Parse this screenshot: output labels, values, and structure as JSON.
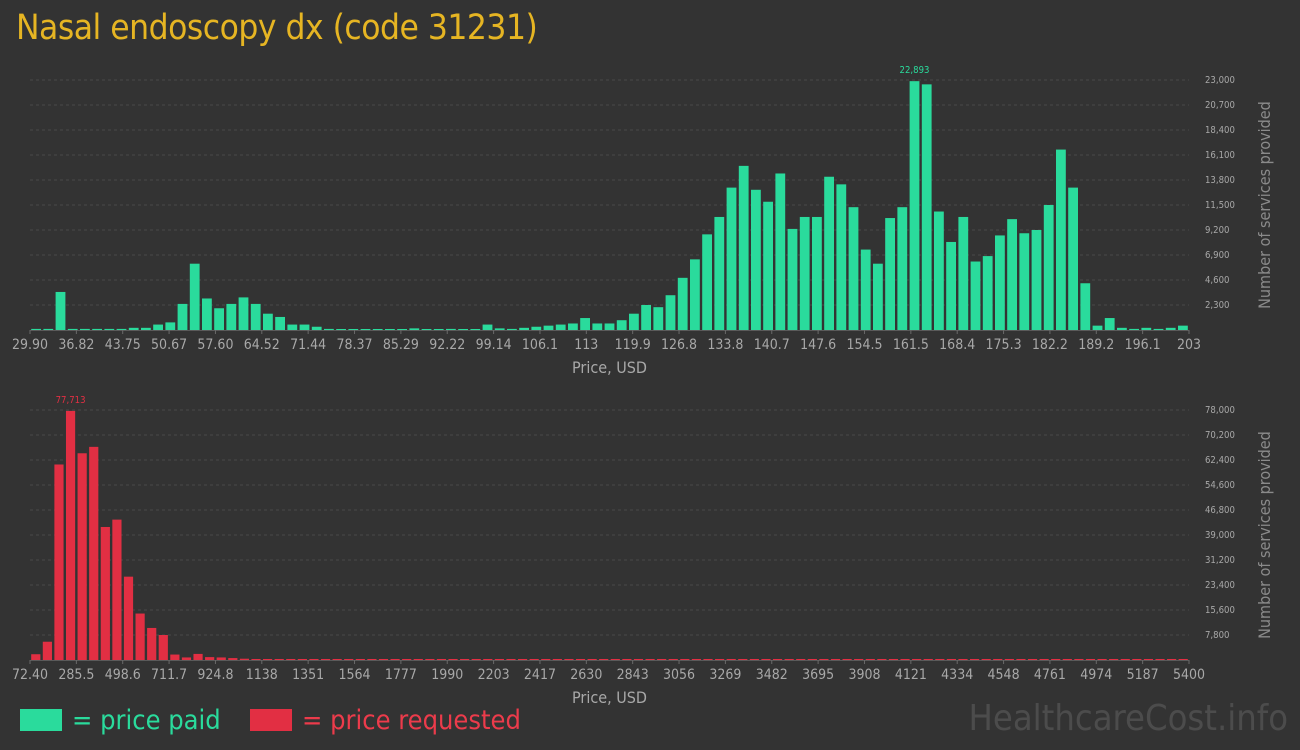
{
  "title": "Nasal endoscopy dx (code 31231)",
  "legend": {
    "paid_label": "= price paid",
    "requested_label": "= price requested"
  },
  "watermark": "HealthcareCost.info",
  "colors": {
    "paid": "#2adb9c",
    "requested": "#e22f43",
    "title": "#e6b523",
    "background": "#333333"
  },
  "chart_data": [
    {
      "type": "bar",
      "name": "price paid",
      "xlabel": "Price, USD",
      "ylabel": "Number of services provided",
      "x_tick_labels": [
        "29.90",
        "36.82",
        "43.75",
        "50.67",
        "57.60",
        "64.52",
        "71.44",
        "78.37",
        "85.29",
        "92.22",
        "99.14",
        "106.1",
        "113",
        "119.9",
        "126.8",
        "133.8",
        "140.7",
        "147.6",
        "154.5",
        "161.5",
        "168.4",
        "175.3",
        "182.2",
        "189.2",
        "196.1",
        "203"
      ],
      "y_tick_labels": [
        "2,300",
        "4,600",
        "6,900",
        "9,200",
        "11,500",
        "13,800",
        "16,100",
        "18,400",
        "20,700",
        "23,000"
      ],
      "ylim": [
        0,
        23000
      ],
      "max_label": "22,893",
      "grid": true,
      "values": [
        100,
        100,
        3500,
        100,
        100,
        100,
        100,
        100,
        200,
        200,
        500,
        700,
        2400,
        6100,
        2900,
        2000,
        2400,
        3000,
        2400,
        1500,
        1200,
        500,
        500,
        300,
        100,
        50,
        50,
        50,
        50,
        50,
        50,
        150,
        50,
        50,
        100,
        50,
        50,
        500,
        150,
        100,
        200,
        300,
        400,
        500,
        600,
        1100,
        600,
        600,
        900,
        1500,
        2300,
        2100,
        3200,
        4800,
        6500,
        8800,
        10400,
        13100,
        15100,
        12900,
        11800,
        14400,
        9300,
        10400,
        10400,
        14100,
        13400,
        11300,
        7400,
        6100,
        10300,
        11300,
        22893,
        22600,
        10900,
        8100,
        10400,
        6300,
        6800,
        8700,
        10200,
        8900,
        9200,
        11500,
        16600,
        13100,
        4300,
        400,
        1100,
        200,
        100,
        200,
        100,
        200,
        400
      ]
    },
    {
      "type": "bar",
      "name": "price requested",
      "xlabel": "Price, USD",
      "ylabel": "Number of services provided",
      "x_tick_labels": [
        "72.40",
        "285.5",
        "498.6",
        "711.7",
        "924.8",
        "1138",
        "1351",
        "1564",
        "1777",
        "1990",
        "2203",
        "2417",
        "2630",
        "2843",
        "3056",
        "3269",
        "3482",
        "3695",
        "3908",
        "4121",
        "4334",
        "4548",
        "4761",
        "4974",
        "5187",
        "5400"
      ],
      "y_tick_labels": [
        "7,800",
        "15,600",
        "23,400",
        "31,200",
        "39,000",
        "46,800",
        "54,600",
        "62,400",
        "70,200",
        "78,000"
      ],
      "ylim": [
        0,
        78000
      ],
      "max_label": "77,713",
      "grid": true,
      "values": [
        1800,
        5700,
        61000,
        77713,
        64500,
        66500,
        41500,
        43800,
        26000,
        14500,
        10000,
        7800,
        1700,
        800,
        1900,
        900,
        800,
        600,
        400,
        300,
        200,
        100,
        50,
        50,
        50,
        50,
        50,
        50,
        50,
        50,
        50,
        50,
        50,
        50,
        100,
        50,
        50,
        50,
        50,
        50,
        50,
        50,
        50,
        50,
        50,
        50,
        50,
        50,
        50,
        50,
        50,
        50,
        50,
        50,
        50,
        50,
        50,
        50,
        50,
        50,
        50,
        50,
        50,
        50,
        50,
        50,
        50,
        50,
        50,
        50,
        50,
        50,
        50,
        50,
        50,
        50,
        50,
        50,
        50,
        50,
        50,
        50,
        50,
        50,
        50,
        50,
        50,
        50,
        50,
        50,
        50,
        50,
        50,
        50,
        50,
        50,
        50,
        50,
        50,
        50
      ]
    }
  ]
}
